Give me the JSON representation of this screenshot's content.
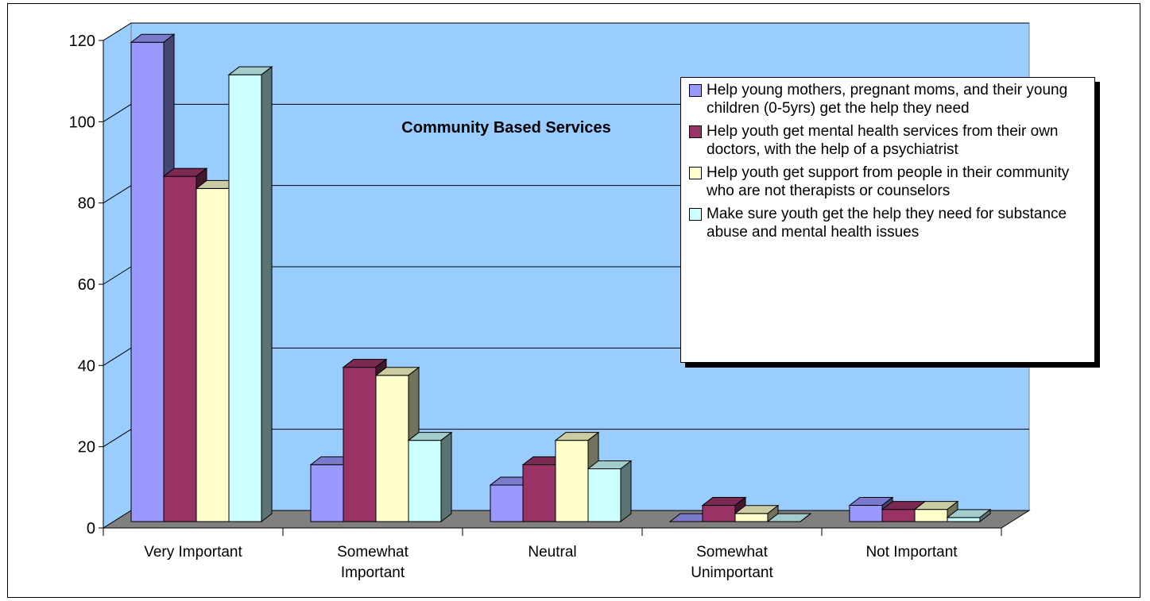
{
  "chart_data": {
    "type": "bar",
    "title": "Community Based Services",
    "categories": [
      "Very Important",
      "Somewhat Important",
      "Neutral",
      "Somewhat Unimportant",
      "Not Important"
    ],
    "category_lines": [
      [
        "Very Important"
      ],
      [
        "Somewhat",
        "Important"
      ],
      [
        "Neutral"
      ],
      [
        "Somewhat",
        "Unimportant"
      ],
      [
        "Not Important"
      ]
    ],
    "series": [
      {
        "name": "Help young mothers, pregnant moms, and their young children (0-5yrs) get the help they need",
        "values": [
          118,
          14,
          9,
          0,
          4
        ],
        "color": "#9999FF"
      },
      {
        "name": "Help youth get mental health services from their own doctors, with the help of a psychiatrist",
        "values": [
          85,
          38,
          14,
          4,
          3
        ],
        "color": "#993366"
      },
      {
        "name": "Help youth get support from people in their community who are not therapists or counselors",
        "values": [
          82,
          36,
          20,
          2,
          3
        ],
        "color": "#FFFFCC"
      },
      {
        "name": "Make sure youth get the help they need for substance abuse and mental health issues",
        "values": [
          110,
          20,
          13,
          0,
          1
        ],
        "color": "#CCFFFF"
      }
    ],
    "yticks": [
      0,
      20,
      40,
      60,
      80,
      100,
      120
    ],
    "ylim": [
      0,
      120
    ],
    "grid": true,
    "legend_position": "right",
    "plot_background": "#99CCFF",
    "floor_color": "#808080"
  }
}
